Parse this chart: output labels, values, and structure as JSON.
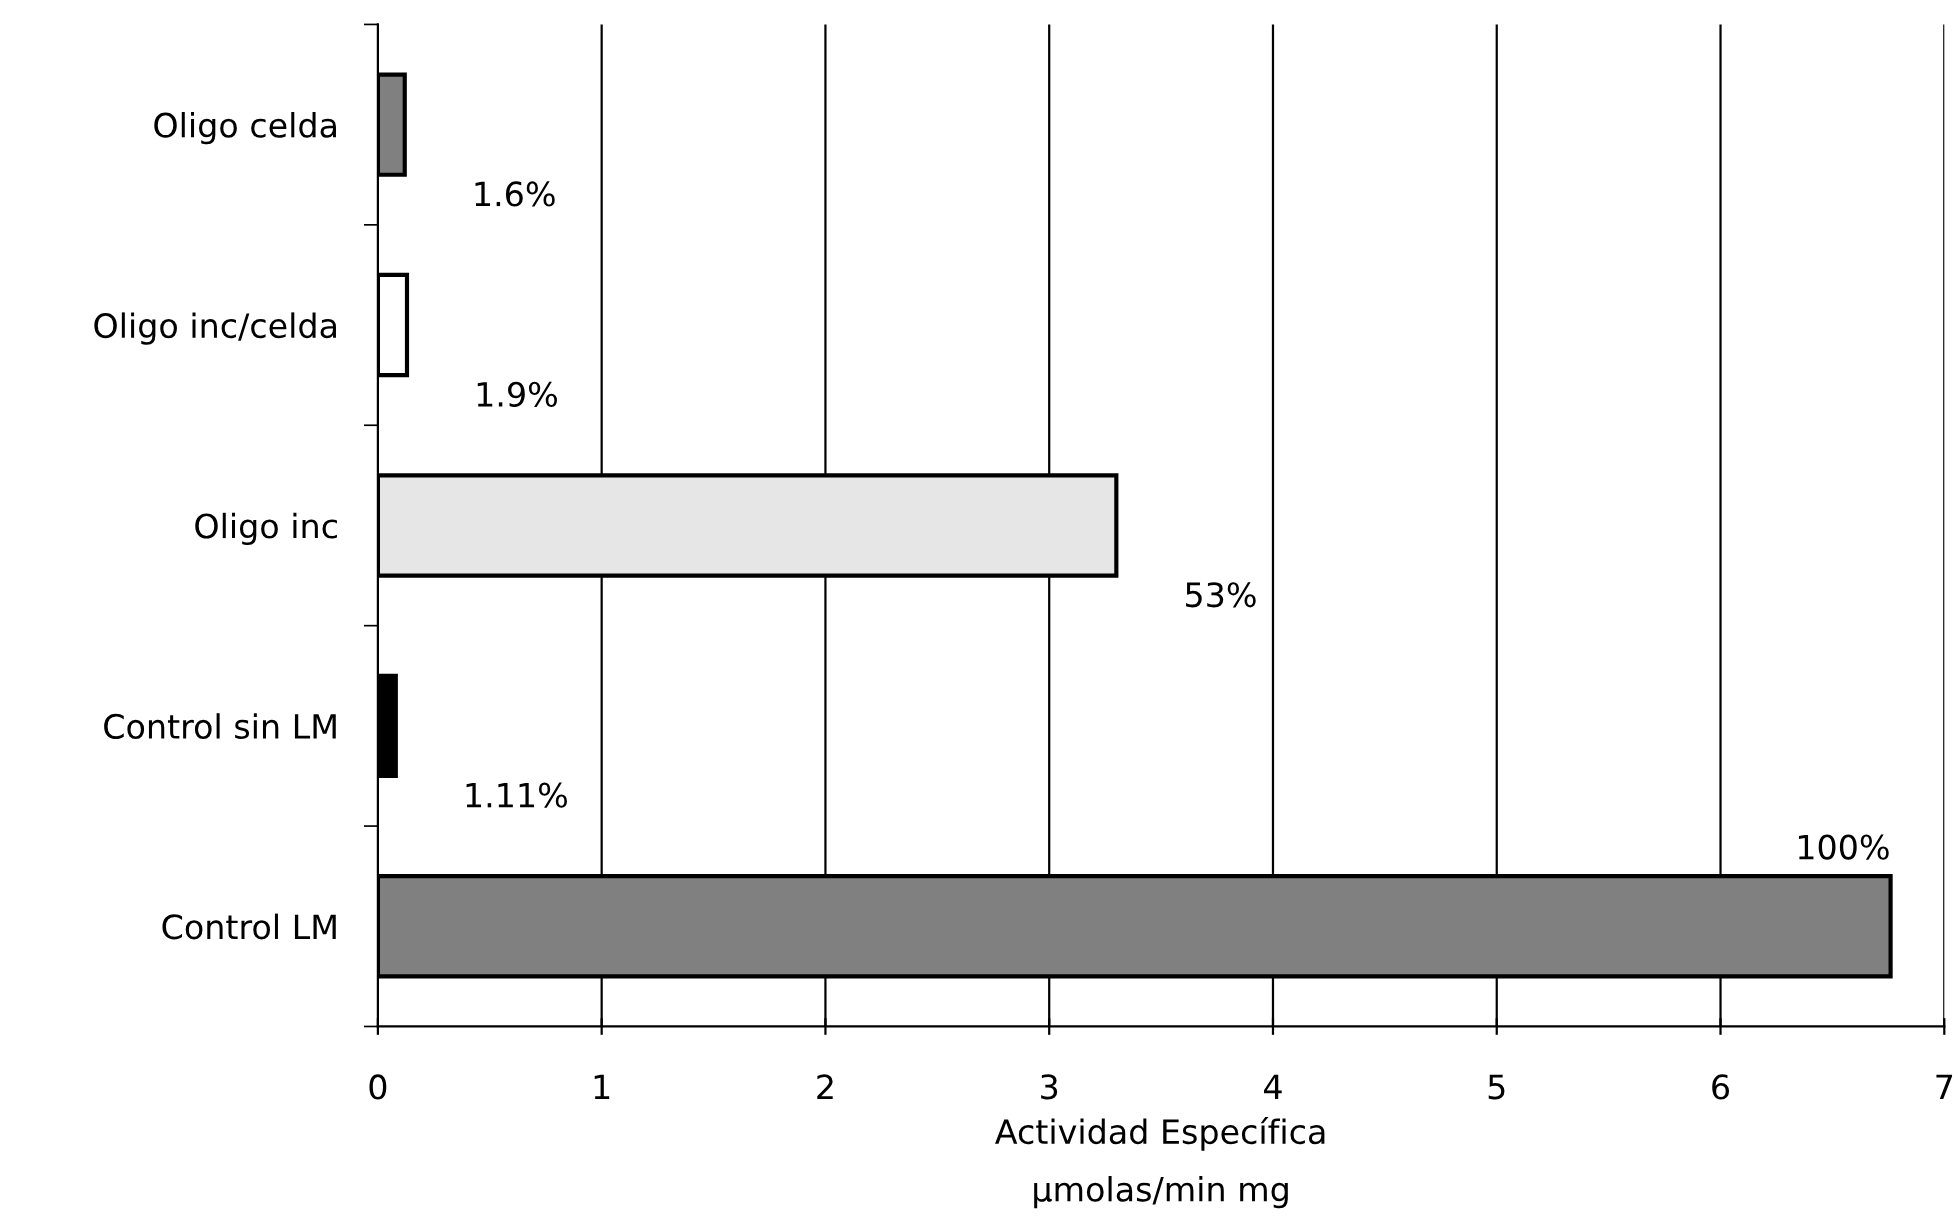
{
  "chart_data": {
    "type": "bar",
    "orientation": "horizontal",
    "categories": [
      "Oligo celda",
      "Oligo inc/celda",
      "Oligo inc",
      "Control sin LM",
      "Control LM"
    ],
    "values": [
      0.12,
      0.13,
      3.3,
      0.08,
      6.76
    ],
    "colors": [
      "#808080",
      "#ffffff",
      "#e6e6e6",
      "#000000",
      "#808080"
    ],
    "annotations": [
      "1.6%",
      "1.9%",
      "53%",
      "1.11%",
      "100%"
    ],
    "xlabel": "Actividad Específica\nμmolas/min mg",
    "xlim": [
      0,
      7
    ],
    "xticks": [
      0,
      1,
      2,
      3,
      4,
      5,
      6,
      7
    ],
    "grid": "x",
    "legend": false
  }
}
